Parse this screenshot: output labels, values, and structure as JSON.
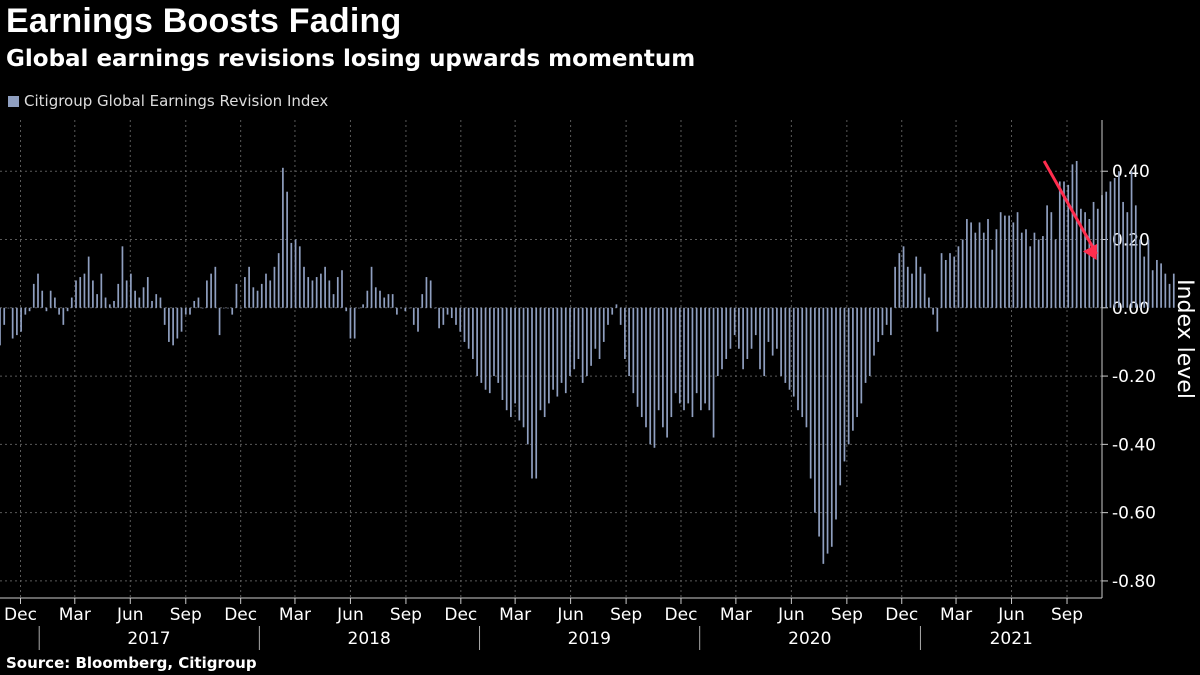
{
  "title": "Earnings Boosts Fading",
  "subtitle": "Global earnings revisions losing upwards momentum",
  "source": "Source: Bloomberg, Citigroup",
  "colors": {
    "bar": "#8f9fc0",
    "arrow": "#ff2d4e",
    "grid": "#5a5a5a"
  },
  "chart_data": {
    "type": "bar",
    "ylabel": "Index level",
    "ylim": [
      -0.85,
      0.55
    ],
    "yticks": [
      -0.8,
      -0.6,
      -0.4,
      -0.2,
      0.0,
      0.2,
      0.4
    ],
    "ytick_labels": [
      "-0.80",
      "-0.60",
      "-0.40",
      "-0.20",
      "0.00",
      "0.20",
      "0.40"
    ],
    "x_start": "2016-10-28",
    "x_end": "2021-10-29",
    "x_ticks": [
      {
        "date": "2016-12-01",
        "label": "Dec"
      },
      {
        "date": "2017-03-01",
        "label": "Mar"
      },
      {
        "date": "2017-06-01",
        "label": "Jun"
      },
      {
        "date": "2017-09-01",
        "label": "Sep"
      },
      {
        "date": "2017-12-01",
        "label": "Dec"
      },
      {
        "date": "2018-03-01",
        "label": "Mar"
      },
      {
        "date": "2018-06-01",
        "label": "Jun"
      },
      {
        "date": "2018-09-01",
        "label": "Sep"
      },
      {
        "date": "2018-12-01",
        "label": "Dec"
      },
      {
        "date": "2019-03-01",
        "label": "Mar"
      },
      {
        "date": "2019-06-01",
        "label": "Jun"
      },
      {
        "date": "2019-09-01",
        "label": "Sep"
      },
      {
        "date": "2019-12-01",
        "label": "Dec"
      },
      {
        "date": "2020-03-01",
        "label": "Mar"
      },
      {
        "date": "2020-06-01",
        "label": "Jun"
      },
      {
        "date": "2020-09-01",
        "label": "Sep"
      },
      {
        "date": "2020-12-01",
        "label": "Dec"
      },
      {
        "date": "2021-03-01",
        "label": "Mar"
      },
      {
        "date": "2021-06-01",
        "label": "Jun"
      },
      {
        "date": "2021-09-01",
        "label": "Sep"
      }
    ],
    "years": [
      {
        "label": "2017",
        "start": "2017-01-01",
        "end": "2017-12-31"
      },
      {
        "label": "2018",
        "start": "2018-01-01",
        "end": "2018-12-31"
      },
      {
        "label": "2019",
        "start": "2019-01-01",
        "end": "2019-12-31"
      },
      {
        "label": "2020",
        "start": "2020-01-01",
        "end": "2020-12-31"
      },
      {
        "label": "2021",
        "start": "2021-01-01",
        "end": "2021-10-29"
      }
    ],
    "series": [
      {
        "name": "Citigroup Global Earnings Revision Index",
        "start_date": "2016-10-28",
        "interval_days": 7,
        "values": [
          -0.11,
          -0.05,
          0.0,
          -0.09,
          -0.08,
          -0.07,
          -0.02,
          -0.01,
          0.07,
          0.1,
          0.05,
          -0.01,
          0.05,
          0.03,
          -0.02,
          -0.05,
          -0.01,
          0.03,
          0.08,
          0.09,
          0.1,
          0.15,
          0.08,
          0.04,
          0.1,
          0.03,
          0.01,
          0.02,
          0.07,
          0.18,
          0.08,
          0.1,
          0.05,
          0.03,
          0.06,
          0.09,
          0.02,
          0.04,
          0.03,
          -0.05,
          -0.1,
          -0.11,
          -0.09,
          -0.07,
          -0.02,
          -0.02,
          0.02,
          0.03,
          0.0,
          0.08,
          0.1,
          0.12,
          -0.08,
          0.0,
          0.0,
          -0.02,
          0.07,
          0.0,
          0.09,
          0.12,
          0.06,
          0.05,
          0.07,
          0.1,
          0.08,
          0.12,
          0.16,
          0.41,
          0.34,
          0.19,
          0.2,
          0.18,
          0.12,
          0.09,
          0.08,
          0.09,
          0.1,
          0.12,
          0.08,
          0.04,
          0.09,
          0.11,
          -0.01,
          -0.09,
          -0.09,
          0.0,
          0.01,
          0.05,
          0.12,
          0.06,
          0.05,
          0.03,
          0.04,
          0.04,
          -0.02,
          0.0,
          -0.01,
          0.0,
          -0.05,
          -0.07,
          0.04,
          0.09,
          0.08,
          0.0,
          -0.06,
          -0.05,
          -0.02,
          -0.03,
          -0.05,
          -0.07,
          -0.1,
          -0.12,
          -0.15,
          -0.2,
          -0.22,
          -0.24,
          -0.25,
          -0.2,
          -0.22,
          -0.27,
          -0.3,
          -0.32,
          -0.28,
          -0.33,
          -0.35,
          -0.4,
          -0.5,
          -0.5,
          -0.3,
          -0.32,
          -0.28,
          -0.24,
          -0.26,
          -0.22,
          -0.25,
          -0.2,
          -0.18,
          -0.15,
          -0.22,
          -0.2,
          -0.17,
          -0.12,
          -0.15,
          -0.1,
          -0.05,
          -0.02,
          0.01,
          -0.05,
          -0.15,
          -0.2,
          -0.25,
          -0.29,
          -0.32,
          -0.35,
          -0.4,
          -0.41,
          -0.3,
          -0.35,
          -0.38,
          -0.32,
          -0.25,
          -0.28,
          -0.3,
          -0.28,
          -0.32,
          -0.25,
          -0.3,
          -0.28,
          -0.3,
          -0.38,
          -0.2,
          -0.18,
          -0.15,
          -0.12,
          -0.08,
          -0.12,
          -0.18,
          -0.15,
          -0.12,
          -0.08,
          -0.18,
          -0.2,
          -0.1,
          -0.14,
          -0.12,
          -0.2,
          -0.22,
          -0.24,
          -0.26,
          -0.3,
          -0.32,
          -0.35,
          -0.5,
          -0.6,
          -0.67,
          -0.75,
          -0.72,
          -0.7,
          -0.62,
          -0.52,
          -0.45,
          -0.4,
          -0.36,
          -0.32,
          -0.28,
          -0.22,
          -0.2,
          -0.14,
          -0.1,
          -0.08,
          -0.05,
          -0.08,
          0.12,
          0.16,
          0.18,
          0.12,
          0.1,
          0.15,
          0.12,
          0.1,
          0.03,
          -0.02,
          -0.07,
          0.16,
          0.14,
          0.16,
          0.15,
          0.18,
          0.2,
          0.26,
          0.25,
          0.22,
          0.25,
          0.22,
          0.26,
          0.17,
          0.23,
          0.28,
          0.27,
          0.27,
          0.25,
          0.28,
          0.22,
          0.23,
          0.18,
          0.22,
          0.2,
          0.21,
          0.3,
          0.28,
          0.2,
          0.37,
          0.37,
          0.36,
          0.42,
          0.43,
          0.29,
          0.28,
          0.26,
          0.31,
          0.29,
          0.33,
          0.34,
          0.37,
          0.38,
          0.4,
          0.31,
          0.28,
          0.4,
          0.3,
          0.2,
          0.15,
          0.2,
          0.11,
          0.14,
          0.13,
          0.1,
          0.07,
          0.1
        ]
      }
    ],
    "annotation": {
      "type": "arrow",
      "from": {
        "date": "2021-07-25",
        "value": 0.43
      },
      "to": {
        "date": "2021-10-20",
        "value": 0.14
      }
    }
  }
}
